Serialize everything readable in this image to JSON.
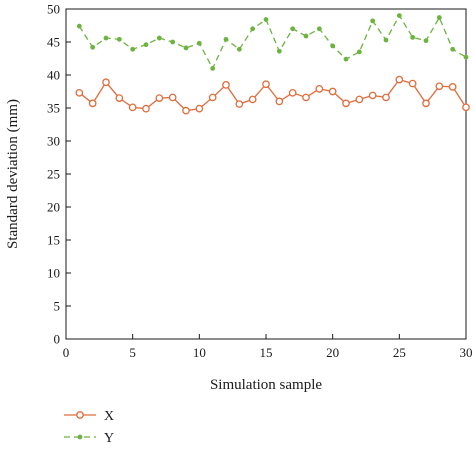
{
  "chart_data": {
    "type": "line",
    "xlabel": "Simulation sample",
    "ylabel": "Standard deviation (mm)",
    "xlim": [
      0,
      30
    ],
    "ylim": [
      0,
      50
    ],
    "x_ticks": [
      0,
      5,
      10,
      15,
      20,
      25,
      30
    ],
    "y_ticks": [
      0,
      5,
      10,
      15,
      20,
      25,
      30,
      35,
      40,
      45,
      50
    ],
    "grid": false,
    "legend_position": "below-left",
    "series": [
      {
        "name": "X",
        "color": "#e06c3c",
        "line_style": "solid",
        "marker": "open-circle",
        "x": [
          1,
          2,
          3,
          4,
          5,
          6,
          7,
          8,
          9,
          10,
          11,
          12,
          13,
          14,
          15,
          16,
          17,
          18,
          19,
          20,
          21,
          22,
          23,
          24,
          25,
          26,
          27,
          28,
          29,
          30
        ],
        "values": [
          37.3,
          35.7,
          38.9,
          36.5,
          35.1,
          34.9,
          36.5,
          36.6,
          34.6,
          34.9,
          36.6,
          38.5,
          35.6,
          36.3,
          38.6,
          36.0,
          37.3,
          36.6,
          37.9,
          37.5,
          35.7,
          36.3,
          36.9,
          36.6,
          39.3,
          38.7,
          35.7,
          38.3,
          38.2,
          35.1
        ]
      },
      {
        "name": "Y",
        "color": "#6db33f",
        "line_style": "dashed",
        "marker": "filled-dot",
        "x": [
          1,
          2,
          3,
          4,
          5,
          6,
          7,
          8,
          9,
          10,
          11,
          12,
          13,
          14,
          15,
          16,
          17,
          18,
          19,
          20,
          21,
          22,
          23,
          24,
          25,
          26,
          27,
          28,
          29,
          30
        ],
        "values": [
          47.4,
          44.2,
          45.6,
          45.4,
          43.9,
          44.6,
          45.6,
          45.0,
          44.1,
          44.8,
          41.0,
          45.4,
          43.9,
          47.0,
          48.4,
          43.6,
          47.0,
          45.9,
          47.0,
          44.4,
          42.4,
          43.5,
          48.2,
          45.3,
          49.0,
          45.7,
          45.2,
          48.7,
          43.9,
          42.7
        ]
      }
    ]
  }
}
